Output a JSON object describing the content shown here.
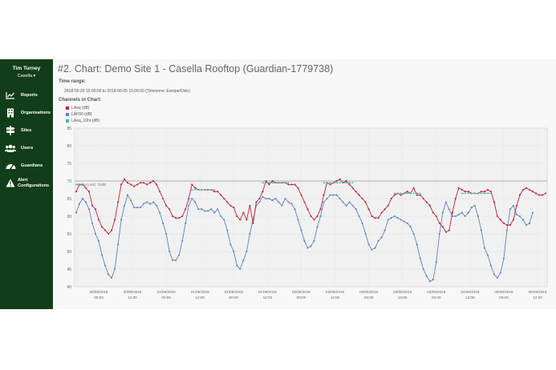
{
  "sidebar": {
    "user_name": "Tim Turney",
    "org_name": "Casella ▾",
    "items": [
      {
        "label": "Reports",
        "icon": "line-chart-icon"
      },
      {
        "label": "Organisations",
        "icon": "building-icon"
      },
      {
        "label": "Sites",
        "icon": "signpost-icon"
      },
      {
        "label": "Users",
        "icon": "users-icon"
      },
      {
        "label": "Guardians",
        "icon": "tachometer-icon"
      },
      {
        "label": "Alert Configurations",
        "icon": "warning-icon"
      }
    ]
  },
  "page": {
    "title": "#2. Chart: Demo Site 1 - Casella Rooftop (Guardian-1779738)",
    "time_range_label": "Time range:",
    "time_range_value": "2018-05-29 15:00:00 to 2018-06-05 15:00:00 (Timezone: Europe/Oslo)",
    "channels_label": "Channels in Chart:"
  },
  "colors": {
    "sidebar_bg": "#123d1a",
    "laeq": "#c0213a",
    "laf90": "#5a86b9",
    "laeq_10hr": "#4db89b",
    "noise_limit": "#999999"
  },
  "chart_data": {
    "type": "line",
    "ylim": [
      40,
      85
    ],
    "yticks": [
      "40",
      "45",
      "50",
      "55",
      "60",
      "65",
      "70",
      "75",
      "80",
      "85"
    ],
    "xticks": [
      [
        "30/05/2018",
        "00:00"
      ],
      [
        "30/05/2018",
        "12:00"
      ],
      [
        "31/05/2018",
        "00:00"
      ],
      [
        "31/05/2018",
        "12:00"
      ],
      [
        "01/06/2018",
        "00:00"
      ],
      [
        "01/06/2018",
        "12:00"
      ],
      [
        "02/06/2018",
        "00:00"
      ],
      [
        "02/06/2018",
        "12:00"
      ],
      [
        "03/06/2018",
        "00:00"
      ],
      [
        "03/06/2018",
        "12:00"
      ],
      [
        "04/06/2018",
        "00:00"
      ],
      [
        "04/06/2018",
        "12:00"
      ],
      [
        "05/06/2018",
        "00:00"
      ],
      [
        "05/06/2018",
        "12:00"
      ]
    ],
    "noise_limit_label": "Noise Limit: 70dB",
    "noise_limit": 70,
    "series": [
      {
        "name": "LAeq (dB)",
        "values": [
          67,
          69,
          69,
          68,
          67,
          63,
          62,
          59,
          57,
          56,
          55,
          56,
          59,
          64,
          69,
          70.5,
          69.5,
          69,
          68.5,
          69,
          69.5,
          69.5,
          69,
          69.5,
          70,
          69,
          67,
          65,
          63,
          62,
          60,
          59.5,
          59.5,
          60,
          62,
          65,
          69,
          68,
          67.5,
          67.5,
          67.5,
          67.5,
          67.5,
          67,
          67,
          66,
          65,
          64,
          63,
          62.5,
          60,
          59,
          61,
          59,
          63,
          58,
          64,
          65,
          67,
          70,
          69,
          70,
          69.5,
          69.5,
          69.5,
          69.5,
          69,
          69,
          69,
          68,
          66,
          64,
          62,
          60,
          59,
          60,
          62,
          66,
          69.5,
          69,
          69.5,
          70,
          70.5,
          69.5,
          70,
          69,
          68,
          67,
          66,
          65,
          64,
          62,
          60,
          59.5,
          59.5,
          61,
          62,
          63,
          65,
          66,
          66.5,
          66,
          66.5,
          67,
          66.5,
          68,
          66,
          66,
          65,
          64,
          63,
          61,
          60,
          58,
          57,
          55.5,
          56,
          61,
          65,
          68,
          67.5,
          67,
          67,
          66.5,
          66.5,
          66.5,
          67,
          67,
          67.5,
          67,
          64,
          60,
          59,
          58,
          57.5,
          57.5,
          59,
          63,
          66,
          67.5,
          68,
          67.5,
          67,
          66.5,
          66,
          66,
          66.5
        ]
      },
      {
        "name": "LAF90 (dB)",
        "values": [
          61,
          63.5,
          65,
          64,
          62,
          58,
          55,
          53,
          49,
          46,
          43.5,
          42.5,
          45,
          52,
          59,
          63,
          66,
          64.5,
          62.5,
          62.5,
          62.5,
          63.5,
          64,
          63.5,
          64,
          63,
          61,
          58,
          55,
          50,
          47.5,
          47.5,
          49,
          53,
          58,
          63,
          65,
          64,
          62,
          62,
          61.5,
          61.5,
          62,
          61,
          62,
          60,
          59,
          56,
          52,
          50,
          46,
          45,
          47.5,
          50,
          55,
          59,
          63,
          64,
          65.5,
          65,
          65,
          64.5,
          65,
          64,
          63,
          65,
          64,
          63.5,
          62,
          59,
          56,
          53,
          51,
          51.5,
          53,
          57,
          60,
          64,
          65,
          66,
          66,
          66,
          65,
          64,
          63,
          64,
          63,
          62,
          60,
          58,
          55,
          52,
          50.5,
          51,
          53,
          54,
          56,
          59,
          59.5,
          60,
          59.5,
          59,
          58.5,
          58,
          57,
          55,
          52,
          48,
          45,
          43,
          41.5,
          42,
          47,
          55,
          61,
          64,
          62,
          60,
          60,
          60.5,
          61,
          60,
          61,
          62.5,
          63,
          60,
          56,
          51,
          49,
          46,
          43.5,
          42.5,
          44,
          48,
          56,
          62,
          63,
          60.5,
          60,
          59,
          57.5,
          58,
          61
        ]
      },
      {
        "name": "LAeq_10hr (dB)",
        "segments": [
          {
            "from": 0,
            "to": 2,
            "value": 69
          },
          {
            "from": 36,
            "to": 43,
            "value": 67.5
          },
          {
            "from": 58,
            "to": 66,
            "value": 69.5
          },
          {
            "from": 77,
            "to": 86,
            "value": 69.5
          },
          {
            "from": 99,
            "to": 107,
            "value": 66.5
          },
          {
            "from": 120,
            "to": 129,
            "value": 66.5
          }
        ]
      }
    ]
  }
}
